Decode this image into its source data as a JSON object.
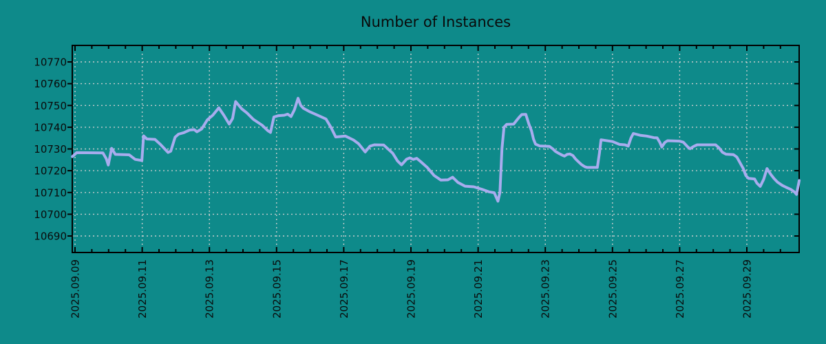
{
  "title": "Number of Instances",
  "colors": {
    "background": "#0e8a8a",
    "line": "#a8acee",
    "grid": "#c8cdcd",
    "frame": "#000000",
    "text": "#0a0a0a"
  },
  "chart_data": {
    "type": "line",
    "title": "Number of Instances",
    "xlabel": "",
    "ylabel": "",
    "legend": "none",
    "grid": true,
    "grid_style": "dotted",
    "y_ticks": [
      10690,
      10700,
      10710,
      10720,
      10730,
      10740,
      10750,
      10760,
      10770
    ],
    "y_tick_labels": [
      "10690",
      "10700",
      "10710",
      "10720",
      "10730",
      "10740",
      "10750",
      "10760",
      "10770"
    ],
    "ylim": [
      10682,
      10778
    ],
    "x_tick_labels": [
      "2025.09.09",
      "2025.09.11",
      "2025.09.13",
      "2025.09.15",
      "2025.09.17",
      "2025.09.19",
      "2025.09.21",
      "2025.09.23",
      "2025.09.25",
      "2025.09.27",
      "2025.09.29"
    ],
    "x_tick_days": [
      0,
      2,
      4,
      6,
      8,
      10,
      12,
      14,
      16,
      18,
      20
    ],
    "x_minor_tick_step_days": 0.5,
    "x_unit": "days since 2025.09.09",
    "xlim": [
      -0.08,
      21.56
    ],
    "series": [
      {
        "name": "Number of Instances",
        "x": [
          -0.08,
          0.05,
          0.83,
          0.93,
          0.99,
          1.09,
          1.2,
          1.61,
          1.79,
          1.99,
          2.04,
          2.14,
          2.38,
          2.55,
          2.77,
          2.85,
          2.98,
          3.08,
          3.24,
          3.41,
          3.55,
          3.63,
          3.77,
          3.94,
          4.1,
          4.28,
          4.43,
          4.59,
          4.69,
          4.78,
          4.96,
          5.12,
          5.31,
          5.57,
          5.74,
          5.82,
          5.92,
          6.06,
          6.23,
          6.33,
          6.43,
          6.53,
          6.64,
          6.72,
          6.8,
          7.0,
          7.21,
          7.47,
          7.62,
          7.76,
          8.05,
          8.29,
          8.44,
          8.64,
          8.78,
          8.91,
          9.19,
          9.46,
          9.6,
          9.72,
          9.87,
          9.97,
          10.07,
          10.17,
          10.28,
          10.48,
          10.69,
          10.89,
          11.1,
          11.24,
          11.4,
          11.61,
          11.87,
          12.12,
          12.32,
          12.48,
          12.59,
          12.65,
          12.71,
          12.77,
          12.85,
          13.06,
          13.14,
          13.22,
          13.3,
          13.42,
          13.51,
          13.59,
          13.65,
          13.71,
          13.83,
          14.12,
          14.22,
          14.3,
          14.41,
          14.51,
          14.57,
          14.65,
          14.73,
          14.82,
          14.9,
          14.98,
          15.08,
          15.18,
          15.25,
          15.55,
          15.61,
          15.66,
          16.0,
          16.21,
          16.37,
          16.47,
          16.55,
          16.62,
          16.82,
          17.02,
          17.23,
          17.33,
          17.41,
          17.47,
          17.56,
          17.64,
          17.99,
          18.11,
          18.25,
          18.31,
          18.42,
          18.52,
          19.07,
          19.17,
          19.27,
          19.38,
          19.6,
          19.7,
          19.89,
          19.97,
          20.05,
          20.23,
          20.3,
          20.4,
          20.5,
          20.6,
          20.71,
          20.81,
          20.91,
          21.05,
          21.18,
          21.32,
          21.42,
          21.48,
          21.56
        ],
        "values": [
          10726.5,
          10728.3,
          10728.2,
          10725.5,
          10722.6,
          10730.3,
          10727.5,
          10727.3,
          10725.2,
          10724.7,
          10736.0,
          10734.6,
          10734.4,
          10732.0,
          10728.4,
          10729.0,
          10735.4,
          10736.8,
          10737.5,
          10738.7,
          10738.9,
          10737.9,
          10739.2,
          10743.4,
          10745.5,
          10748.9,
          10745.5,
          10741.4,
          10744.0,
          10751.8,
          10748.5,
          10746.5,
          10743.6,
          10740.9,
          10738.4,
          10737.6,
          10744.7,
          10745.3,
          10745.5,
          10746.0,
          10744.9,
          10748.0,
          10753.3,
          10750.0,
          10748.7,
          10747.0,
          10745.6,
          10743.8,
          10739.9,
          10735.5,
          10735.9,
          10734.1,
          10732.4,
          10728.6,
          10731.3,
          10731.9,
          10731.8,
          10728.0,
          10724.5,
          10722.7,
          10725.3,
          10725.9,
          10725.2,
          10725.7,
          10724.3,
          10721.6,
          10717.8,
          10715.7,
          10715.8,
          10717.0,
          10714.6,
          10712.9,
          10712.6,
          10711.4,
          10710.3,
          10709.9,
          10706.0,
          10710.0,
          10730.0,
          10740.0,
          10741.3,
          10741.4,
          10743.0,
          10744.5,
          10745.8,
          10745.9,
          10741.5,
          10738.3,
          10734.5,
          10732.2,
          10731.4,
          10731.2,
          10730.1,
          10728.9,
          10727.9,
          10727.1,
          10726.7,
          10727.5,
          10727.7,
          10727.0,
          10725.4,
          10724.2,
          10722.8,
          10721.8,
          10721.5,
          10721.5,
          10728.0,
          10734.2,
          10733.4,
          10732.1,
          10731.9,
          10731.3,
          10735.0,
          10737.1,
          10736.3,
          10735.9,
          10735.2,
          10735.1,
          10733.0,
          10730.9,
          10733.0,
          10733.8,
          10733.6,
          10733.1,
          10730.8,
          10730.1,
          10731.2,
          10731.9,
          10731.9,
          10730.5,
          10728.5,
          10727.6,
          10727.4,
          10726.3,
          10721.1,
          10717.8,
          10716.5,
          10716.2,
          10714.3,
          10712.8,
          10716.0,
          10721.0,
          10718.4,
          10716.4,
          10714.8,
          10713.3,
          10712.3,
          10711.3,
          10710.2,
          10709.1,
          10715.5
        ]
      }
    ]
  }
}
